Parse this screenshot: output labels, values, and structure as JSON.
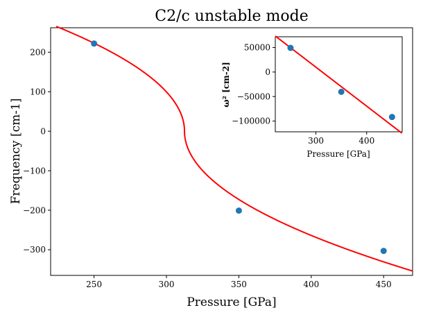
{
  "chart_data": [
    {
      "type": "scatter",
      "title": "C2/c unstable mode",
      "xlabel": "Pressure [GPa]",
      "ylabel": "Frequency [cm-1]",
      "xlim": [
        220,
        470
      ],
      "ylim": [
        -365,
        262
      ],
      "xticks": [
        250,
        300,
        350,
        400,
        450
      ],
      "yticks": [
        200,
        100,
        0,
        -100,
        -200,
        -300
      ],
      "xtick_labels": [
        "250",
        "300",
        "350",
        "400",
        "450"
      ],
      "ytick_labels": [
        "200",
        "100",
        "0",
        "−100",
        "−200",
        "−300"
      ],
      "points": [
        {
          "x": 250,
          "y": 222
        },
        {
          "x": 350,
          "y": -201
        },
        {
          "x": 450,
          "y": -303
        }
      ],
      "fit": {
        "label": "fit",
        "color": "#ff0000",
        "a": -795.3,
        "b": 248500,
        "x_range": [
          220,
          470
        ]
      },
      "point_color": "#1f77b4"
    },
    {
      "type": "scatter",
      "title": "",
      "xlabel": "Pressure [GPa]",
      "ylabel": "ω² [cm-2]",
      "xlim": [
        220,
        470
      ],
      "ylim": [
        -122000,
        72000
      ],
      "xticks": [
        300,
        400
      ],
      "yticks": [
        50000,
        0,
        -50000,
        -100000
      ],
      "xtick_labels": [
        "300",
        "400"
      ],
      "ytick_labels": [
        "50000",
        "0",
        "−50000",
        "−100000"
      ],
      "points": [
        {
          "x": 250,
          "y": 49300
        },
        {
          "x": 350,
          "y": -40400
        },
        {
          "x": 450,
          "y": -91800
        }
      ],
      "fit": {
        "label": "fit",
        "color": "#ff0000",
        "a": -795.3,
        "b": 248500,
        "x_range": [
          220,
          470
        ]
      },
      "point_color": "#1f77b4"
    }
  ]
}
